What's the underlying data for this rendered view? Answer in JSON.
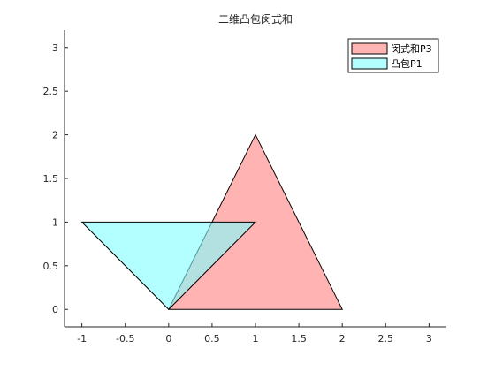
{
  "chart_data": {
    "type": "area",
    "title": "二维凸包闵式和",
    "xlabel": "",
    "ylabel": "",
    "xlim": [
      -1.2,
      3.2
    ],
    "ylim": [
      -0.2,
      3.2
    ],
    "xticks": [
      -1,
      -0.5,
      0,
      0.5,
      1,
      1.5,
      2,
      2.5,
      3
    ],
    "yticks": [
      0,
      0.5,
      1,
      1.5,
      2,
      2.5,
      3
    ],
    "xtick_labels": [
      "-1",
      "-0.5",
      "0",
      "0.5",
      "1",
      "1.5",
      "2",
      "2.5",
      "3"
    ],
    "ytick_labels": [
      "0",
      "0.5",
      "1",
      "1.5",
      "2",
      "2.5",
      "3"
    ],
    "grid": false,
    "legend_position": "top-right",
    "series": [
      {
        "name": "闵式和P3",
        "color": "#ff8080",
        "opacity": 0.6,
        "points": [
          [
            0,
            0
          ],
          [
            2,
            0
          ],
          [
            1,
            2
          ]
        ]
      },
      {
        "name": "凸包P1",
        "color": "#80ffff",
        "opacity": 0.6,
        "points": [
          [
            -1,
            1
          ],
          [
            0,
            0
          ],
          [
            1,
            1
          ]
        ]
      }
    ]
  }
}
